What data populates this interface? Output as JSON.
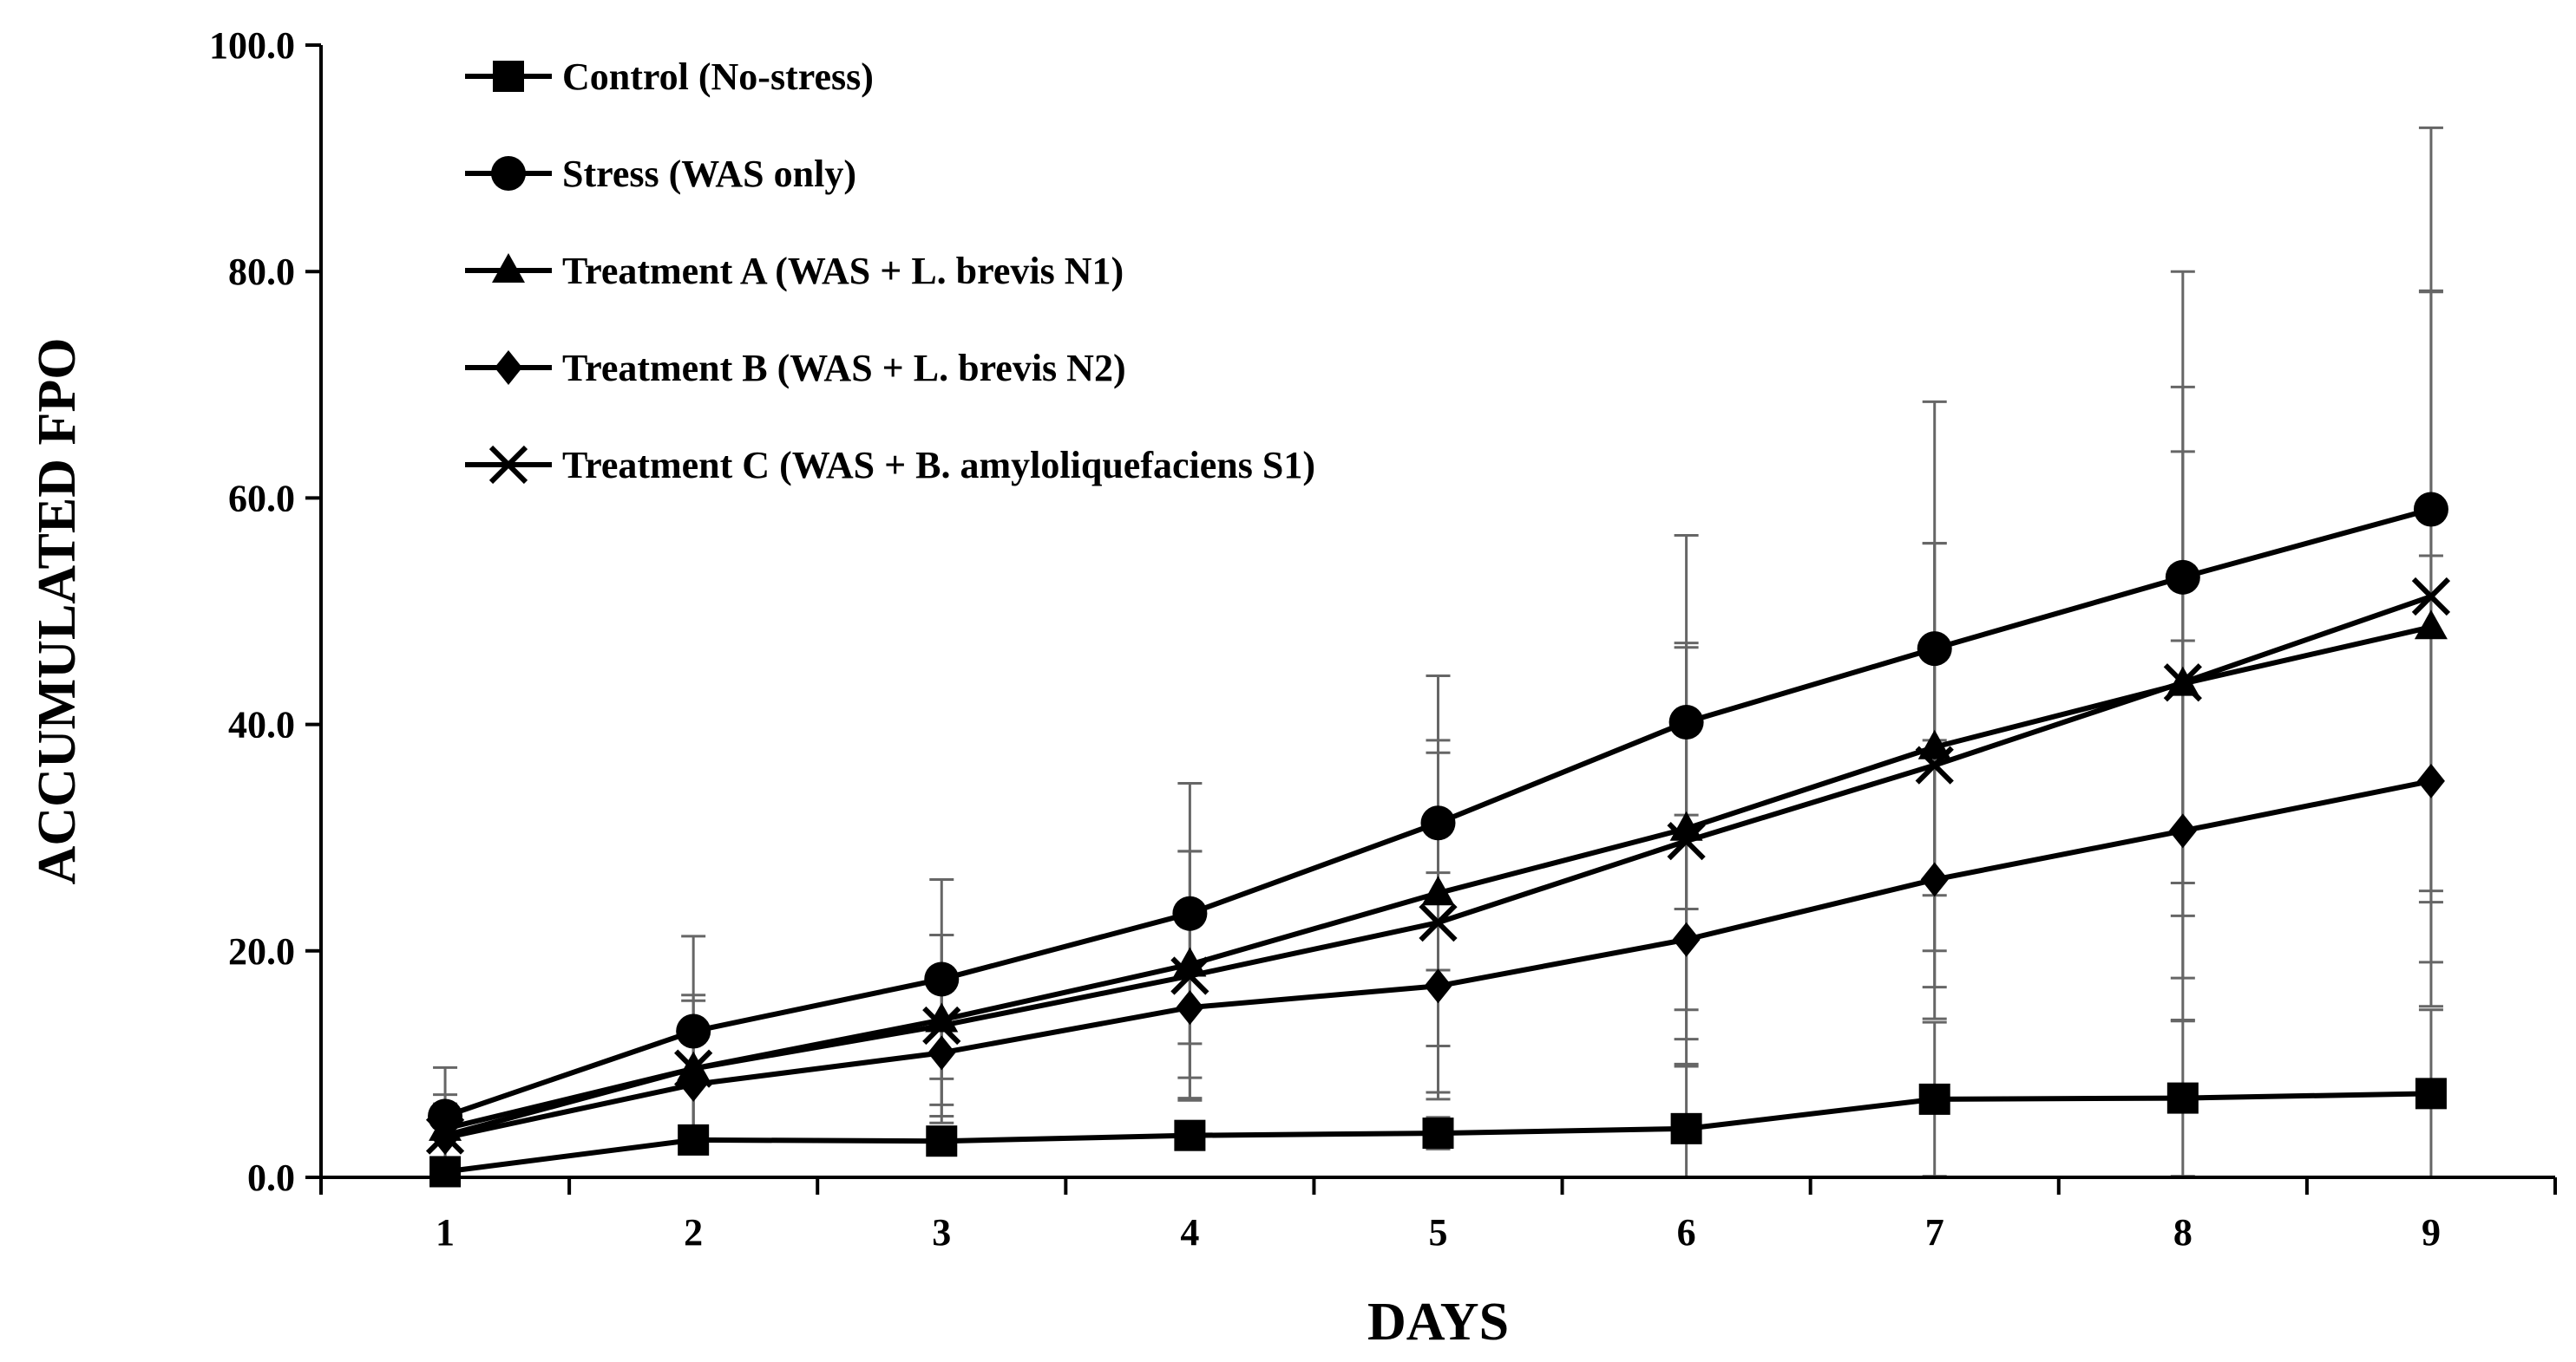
{
  "chart_data": {
    "type": "line",
    "title": "",
    "xlabel": "DAYS",
    "ylabel": "ACCUMULATED FPO",
    "categories": [
      "1",
      "2",
      "3",
      "4",
      "5",
      "6",
      "7",
      "8",
      "9"
    ],
    "x": [
      1,
      2,
      3,
      4,
      5,
      6,
      7,
      8,
      9
    ],
    "ylim": [
      0,
      100
    ],
    "yticks": [
      "0.0",
      "20.0",
      "40.0",
      "60.0",
      "80.0",
      "100.0"
    ],
    "grid": false,
    "legend_position": "top-left",
    "series": [
      {
        "name": "Control (No-stress)",
        "marker": "square",
        "values": [
          0.5,
          3.3,
          3.2,
          3.7,
          3.9,
          4.3,
          6.9,
          7.0,
          7.4
        ],
        "error": [
          0.6,
          1.0,
          1.0,
          1.2,
          1.4,
          5.5,
          6.8,
          6.9,
          7.4
        ]
      },
      {
        "name": "Stress (WAS only)",
        "marker": "circle",
        "values": [
          5.4,
          12.9,
          17.5,
          23.3,
          31.3,
          40.2,
          46.7,
          53.0,
          59.0
        ],
        "error": [
          4.3,
          8.4,
          8.8,
          11.5,
          13.0,
          16.5,
          21.8,
          27.0,
          33.7
        ]
      },
      {
        "name": "Treatment A (WAS + L. brevis N1)",
        "marker": "triangle",
        "values": [
          4.3,
          9.6,
          13.9,
          18.8,
          25.1,
          30.8,
          38.0,
          43.6,
          48.6
        ],
        "error": [
          3.0,
          6.5,
          7.5,
          10.0,
          13.5,
          16.0,
          18.0,
          20.5,
          29.6
        ]
      },
      {
        "name": "Treatment B (WAS + L. brevis N2)",
        "marker": "diamond",
        "values": [
          3.5,
          8.2,
          11.0,
          15.0,
          16.9,
          21.0,
          26.3,
          30.6,
          35.0
        ],
        "error": [
          2.5,
          5.5,
          6.2,
          8.0,
          10.0,
          11.0,
          12.3,
          16.8,
          19.9
        ]
      },
      {
        "name": "Treatment C (WAS + B. amyloliquefaciens S1)",
        "marker": "x",
        "values": [
          3.7,
          9.6,
          13.4,
          17.8,
          22.5,
          29.7,
          36.4,
          43.7,
          51.3
        ],
        "error": [
          2.8,
          6.0,
          8.0,
          11.0,
          15.0,
          17.5,
          19.6,
          26.1,
          27.0
        ]
      }
    ]
  }
}
